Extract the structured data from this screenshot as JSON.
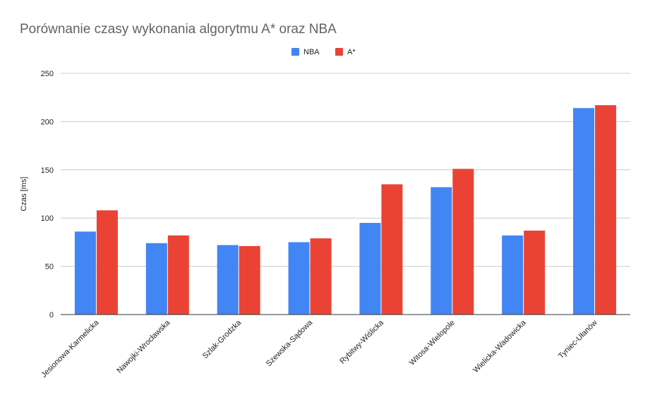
{
  "chart_data": {
    "type": "bar",
    "title": "Porównanie czasy wykonania algorytmu A* oraz NBA",
    "xlabel": "",
    "ylabel": "Czas [ms]",
    "ylim": [
      0,
      250
    ],
    "yticks": [
      0,
      50,
      100,
      150,
      200,
      250
    ],
    "grid": true,
    "legend_position": "top",
    "categories": [
      "Jesionowa-Karmelicka",
      "Nawojki-Wrocławska",
      "Szlak-Grodzka",
      "Szewska-Sądowa",
      "Rybitwy-Wiślicka",
      "Witosa-Wielopole",
      "Wielicka-Wadowicka",
      "Tyniec-Ułanów"
    ],
    "series": [
      {
        "name": "NBA",
        "color": "#4285f4",
        "values": [
          86,
          74,
          72,
          75,
          95,
          132,
          82,
          214
        ]
      },
      {
        "name": "A*",
        "color": "#ea4335",
        "values": [
          108,
          82,
          71,
          79,
          135,
          151,
          87,
          217
        ]
      }
    ]
  }
}
